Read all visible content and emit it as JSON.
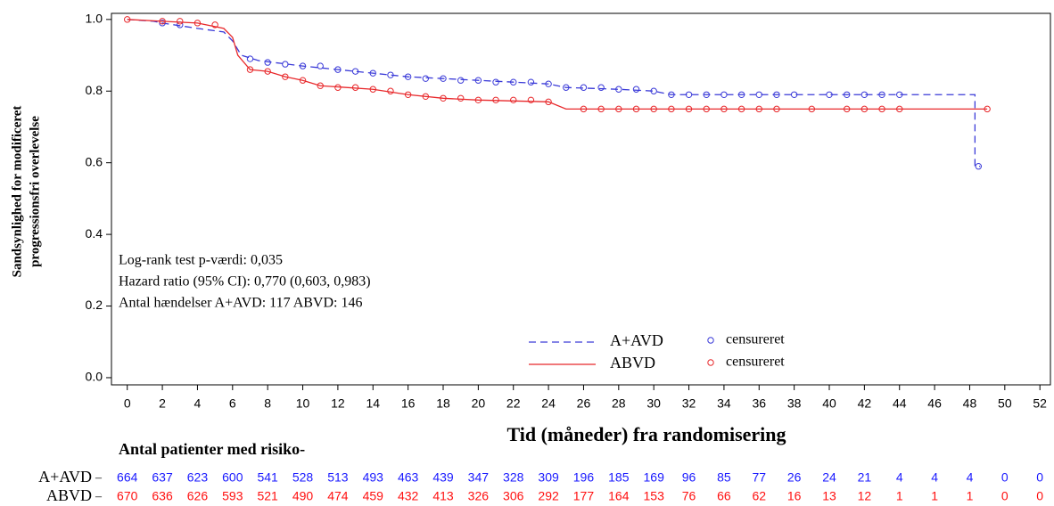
{
  "chart_data": {
    "type": "km",
    "ylabel": [
      "Sandsynlighed for modificeret",
      "progressionsfri overlevelse"
    ],
    "xlabel": "Tid (måneder) fra randomisering",
    "annotations": [
      "Log-rank test p-værdi: 0,035",
      "Hazard ratio (95% CI): 0,770 (0,603, 0,983)",
      "Antal hændelser A+AVD: 117  ABVD: 146"
    ],
    "xlim": [
      -0.9,
      52.6
    ],
    "ylim": [
      -0.02,
      1.017
    ],
    "xticks": [
      0,
      2,
      4,
      6,
      8,
      10,
      12,
      14,
      16,
      18,
      20,
      22,
      24,
      26,
      28,
      30,
      32,
      34,
      36,
      38,
      40,
      42,
      44,
      46,
      48,
      50,
      52
    ],
    "yticks": [
      {
        "value": 0,
        "label": "0.0"
      },
      0.2,
      0.4,
      0.6,
      0.8,
      {
        "value": 1,
        "label": "1.0"
      }
    ],
    "series": [
      {
        "name": "A+AVD",
        "color": "#3a3ad8",
        "dashed": true,
        "x": [
          0,
          1.5,
          2,
          4,
          5.5,
          6,
          6.5,
          7.5,
          10,
          12,
          14,
          16,
          18,
          20,
          22,
          24,
          25,
          28,
          30,
          31,
          48.3,
          48.3,
          48.6
        ],
        "values": [
          1,
          0.995,
          0.99,
          0.975,
          0.965,
          0.94,
          0.9,
          0.885,
          0.87,
          0.86,
          0.85,
          0.84,
          0.835,
          0.83,
          0.825,
          0.82,
          0.81,
          0.805,
          0.8,
          0.79,
          0.79,
          0.59,
          0.59
        ],
        "censored": {
          "name": "censureret",
          "x": [
            2,
            3,
            7,
            8,
            9,
            10,
            11,
            12,
            13,
            14,
            15,
            16,
            17,
            18,
            19,
            20,
            21,
            22,
            23,
            24,
            25,
            26,
            27,
            28,
            29,
            30,
            31,
            32,
            33,
            34,
            35,
            36,
            37,
            38,
            40,
            41,
            42,
            43,
            44,
            48.5
          ],
          "values": [
            0.99,
            0.985,
            0.89,
            0.88,
            0.875,
            0.87,
            0.87,
            0.86,
            0.855,
            0.85,
            0.845,
            0.84,
            0.835,
            0.835,
            0.83,
            0.83,
            0.825,
            0.825,
            0.825,
            0.82,
            0.81,
            0.81,
            0.81,
            0.805,
            0.805,
            0.8,
            0.79,
            0.79,
            0.79,
            0.79,
            0.79,
            0.79,
            0.79,
            0.79,
            0.79,
            0.79,
            0.79,
            0.79,
            0.79,
            0.59
          ]
        }
      },
      {
        "name": "ABVD",
        "color": "#e8282b",
        "dashed": false,
        "x": [
          0,
          2,
          4,
          5.5,
          6,
          6.3,
          7,
          8,
          9,
          10,
          11,
          14,
          16,
          18,
          20,
          24,
          25,
          49
        ],
        "values": [
          1,
          0.995,
          0.99,
          0.975,
          0.95,
          0.9,
          0.86,
          0.855,
          0.84,
          0.83,
          0.815,
          0.805,
          0.79,
          0.78,
          0.775,
          0.77,
          0.75,
          0.75
        ],
        "censored": {
          "name": "censureret",
          "x": [
            0,
            2,
            3,
            4,
            5,
            7,
            8,
            9,
            10,
            11,
            12,
            13,
            14,
            15,
            16,
            17,
            18,
            19,
            20,
            21,
            22,
            23,
            24,
            26,
            27,
            28,
            29,
            30,
            31,
            32,
            33,
            34,
            35,
            36,
            37,
            39,
            41,
            42,
            43,
            44,
            49
          ],
          "values": [
            1,
            0.995,
            0.995,
            0.99,
            0.985,
            0.86,
            0.855,
            0.84,
            0.83,
            0.815,
            0.81,
            0.81,
            0.805,
            0.8,
            0.79,
            0.785,
            0.78,
            0.78,
            0.775,
            0.775,
            0.775,
            0.775,
            0.77,
            0.75,
            0.75,
            0.75,
            0.75,
            0.75,
            0.75,
            0.75,
            0.75,
            0.75,
            0.75,
            0.75,
            0.75,
            0.75,
            0.75,
            0.75,
            0.75,
            0.75,
            0.75
          ]
        }
      }
    ],
    "risk_table": {
      "title": "Antal patienter med risiko-",
      "rows": [
        {
          "name": "A+AVD",
          "color": "#1a1aff",
          "values": [
            664,
            637,
            623,
            600,
            541,
            528,
            513,
            493,
            463,
            439,
            347,
            328,
            309,
            196,
            185,
            169,
            96,
            85,
            77,
            26,
            24,
            21,
            4,
            4,
            4,
            0,
            0
          ]
        },
        {
          "name": "ABVD",
          "color": "#ff1010",
          "values": [
            670,
            636,
            626,
            593,
            521,
            490,
            474,
            459,
            432,
            413,
            326,
            306,
            292,
            177,
            164,
            153,
            76,
            66,
            62,
            16,
            13,
            12,
            1,
            1,
            1,
            0,
            0
          ]
        }
      ]
    }
  }
}
